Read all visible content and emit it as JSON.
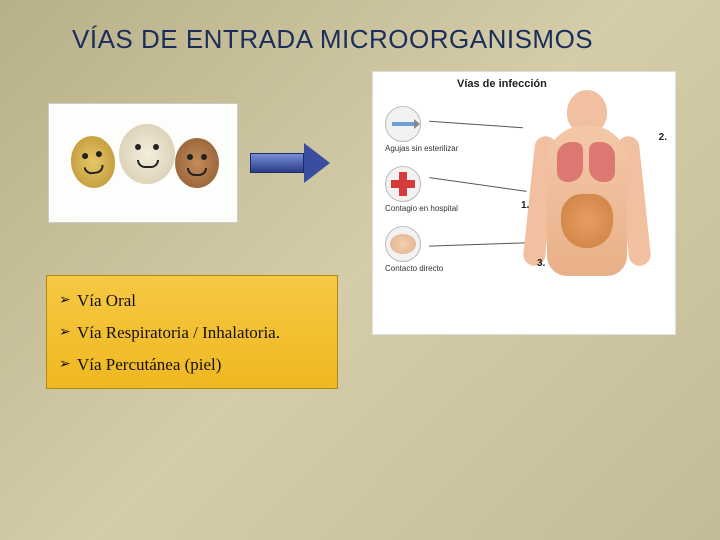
{
  "title": "VÍAS DE ENTRADA MICROORGANISMOS",
  "arrow": {
    "color_light": "#7a8ed6",
    "color_dark": "#2a3d8a"
  },
  "right_panel": {
    "heading": "Vías de infección",
    "icons": [
      {
        "label": "Agujas sin esterilizar"
      },
      {
        "label": "Contagio en hospital"
      },
      {
        "label": "Contacto directo"
      }
    ],
    "numbers": [
      "1.",
      "2.",
      "3."
    ]
  },
  "list": {
    "background_color": "#f6c844",
    "border_color": "#b08a10",
    "items": [
      "Vía Oral",
      "Vía Respiratoria / Inhalatoria.",
      "Vía Percutánea (piel)"
    ]
  },
  "colors": {
    "title_color": "#1a2d5c",
    "slide_bg_a": "#b8b088",
    "slide_bg_b": "#d4cda8"
  }
}
